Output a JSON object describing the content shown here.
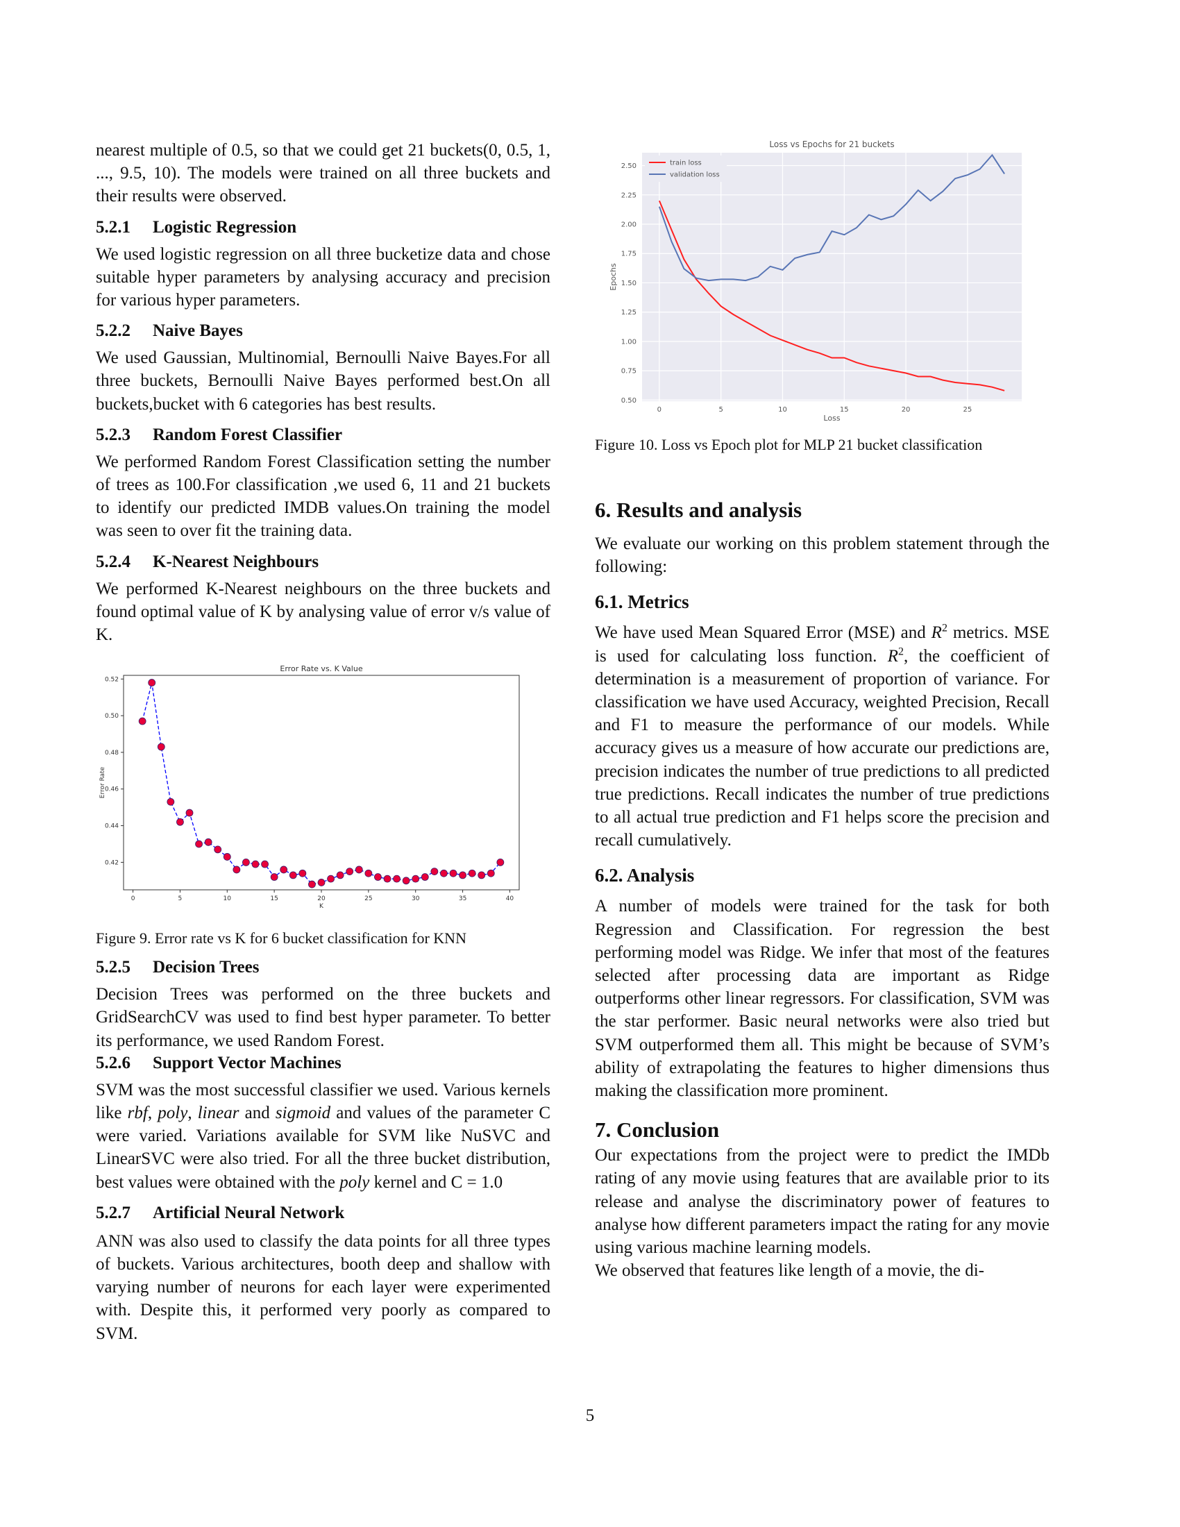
{
  "left": {
    "intro": "nearest multiple of 0.5, so that we could get 21 buckets(0, 0.5, 1, ..., 9.5, 10). The models were trained on all three buckets and their results were observed.",
    "s521_num": "5.2.1",
    "s521_title": "Logistic Regression",
    "s521_text": "We used logistic regression on all three bucketize data and chose suitable hyper parameters by analysing accuracy and precision for various hyper parameters.",
    "s522_num": "5.2.2",
    "s522_title": "Naive Bayes",
    "s522_text": "We used Gaussian, Multinomial, Bernoulli Naive Bayes.For all three buckets, Bernoulli Naive Bayes performed best.On all buckets,bucket with 6 categories has best results.",
    "s523_num": "5.2.3",
    "s523_title": "Random Forest Classifier",
    "s523_text": "We performed Random Forest Classification setting the number of trees as 100.For classification ,we used 6, 11 and 21 buckets to identify our predicted IMDB values.On training the model was seen to over fit the training data.",
    "s524_num": "5.2.4",
    "s524_title": "K-Nearest Neighbours",
    "s524_text": "We performed K-Nearest neighbours on the three buckets and found optimal value of K by analysing value of error v/s value of K.",
    "fig9_caption": "Figure 9. Error rate vs K for 6 bucket classification for KNN",
    "s525_num": "5.2.5",
    "s525_title": "Decision Trees",
    "s525_text": "Decision Trees was performed on the three buckets and GridSearchCV was used to find best hyper parameter. To better its performance, we used Random Forest.",
    "s526_num": "5.2.6",
    "s526_title": "Support Vector Machines",
    "s526_t1": "SVM was the most successful classifier we used. Various kernels like ",
    "s526_rbf": "rbf",
    "s526_c1": ", ",
    "s526_poly": "poly",
    "s526_c2": ", ",
    "s526_linear": "linear",
    "s526_and": " and ",
    "s526_sigmoid": "sigmoid",
    "s526_t2": " and values of the parameter C were varied. Variations available for SVM like NuSVC and LinearSVC were also tried. For all the three bucket distribution, best values were obtained with the ",
    "s526_poly2": "poly",
    "s526_t3": " kernel and C = 1.0",
    "s527_num": "5.2.7",
    "s527_title": "Artificial Neural Network",
    "s527_text": "ANN was also used to classify the data points for all three types of buckets. Various architectures, booth deep and shallow with varying number of neurons for each layer were experimented with. Despite this, it performed very poorly as compared to SVM."
  },
  "right": {
    "fig10_caption": "Figure 10. Loss vs Epoch plot for MLP 21 bucket classification",
    "s6_title": "6. Results and analysis",
    "s6_text": "We evaluate our working on this problem statement through the following:",
    "s61_title": "6.1. Metrics",
    "s61_t1": "We have used Mean Squared Error (MSE) and ",
    "s61_R1": "R",
    "s61_sup1": "2",
    "s61_t2": " metrics. MSE is used for calculating loss function. ",
    "s61_R2": "R",
    "s61_sup2": "2",
    "s61_t3": ", the coefficient of determination is a measurement of proportion of variance. For classification we have used Accuracy, weighted Precision, Recall and F1 to measure the performance of our models. While accuracy gives us a measure of how accurate our predictions are, precision indicates the number of true predictions to all predicted true predictions. Recall indicates the number of true predictions to all actual true prediction and F1 helps score the precision and recall cumulatively.",
    "s62_title": "6.2. Analysis",
    "s62_text": "A number of models were trained for the task for both Regression and Classification. For regression the best performing model was Ridge. We infer that most of the features selected after processing data are important as Ridge outperforms other linear regressors. For classification, SVM was the star performer. Basic neural networks were also tried but SVM outperformed them all. This might be because of SVM’s ability of extrapolating the features to higher dimensions thus making the classification more prominent.",
    "s7_title": "7. Conclusion",
    "s7_p1": "Our expectations from the project were to predict the IMDb rating of any movie using features that are available prior to its release and analyse the discriminatory power of features to analyse how different parameters impact the rating for any movie using various machine learning models.",
    "s7_p2": "We observed that features like length of a movie, the di-"
  },
  "page_number": "5",
  "chart_data": [
    {
      "type": "line",
      "title": "Error Rate vs. K Value",
      "xlabel": "K",
      "ylabel": "Error Rate",
      "xlim": [
        -1,
        41
      ],
      "ylim": [
        0.405,
        0.522
      ],
      "xticks": [
        0,
        5,
        10,
        15,
        20,
        25,
        30,
        35,
        40
      ],
      "yticks": [
        0.42,
        0.44,
        0.46,
        0.48,
        0.5,
        0.52
      ],
      "ytick_labels": [
        "0.42",
        "0.44",
        "0.46",
        "0.48",
        "0.50",
        "0.52"
      ],
      "line_color": "#0000ff",
      "marker_color": "#e8003a",
      "x": [
        1,
        2,
        3,
        4,
        5,
        6,
        7,
        8,
        9,
        10,
        11,
        12,
        13,
        14,
        15,
        16,
        17,
        18,
        19,
        20,
        21,
        22,
        23,
        24,
        25,
        26,
        27,
        28,
        29,
        30,
        31,
        32,
        33,
        34,
        35,
        36,
        37,
        38,
        39
      ],
      "values": [
        0.497,
        0.518,
        0.483,
        0.453,
        0.442,
        0.447,
        0.43,
        0.431,
        0.427,
        0.423,
        0.416,
        0.42,
        0.419,
        0.419,
        0.412,
        0.416,
        0.413,
        0.414,
        0.408,
        0.409,
        0.411,
        0.413,
        0.415,
        0.416,
        0.414,
        0.412,
        0.411,
        0.411,
        0.41,
        0.411,
        0.412,
        0.415,
        0.414,
        0.414,
        0.413,
        0.414,
        0.413,
        0.414,
        0.42
      ]
    },
    {
      "type": "line",
      "title": "Loss vs Epochs for 21 buckets",
      "xlabel": "Loss",
      "ylabel": "Epochs",
      "xlim": [
        -1.4,
        29.4
      ],
      "ylim": [
        0.49,
        2.61
      ],
      "xticks": [
        0,
        5,
        10,
        15,
        20,
        25
      ],
      "yticks": [
        0.5,
        0.75,
        1.0,
        1.25,
        1.5,
        1.75,
        2.0,
        2.25,
        2.5
      ],
      "ytick_labels": [
        "0.50",
        "0.75",
        "1.00",
        "1.25",
        "1.50",
        "1.75",
        "2.00",
        "2.25",
        "2.50"
      ],
      "legend_position": "top-left",
      "series": [
        {
          "name": "train loss",
          "color": "#ff2020",
          "x": [
            0,
            1,
            2,
            3,
            4,
            5,
            6,
            7,
            8,
            9,
            10,
            11,
            12,
            13,
            14,
            15,
            16,
            17,
            18,
            19,
            20,
            21,
            22,
            23,
            24,
            25,
            26,
            27,
            28
          ],
          "values": [
            2.2,
            1.95,
            1.7,
            1.53,
            1.41,
            1.3,
            1.23,
            1.17,
            1.11,
            1.05,
            1.01,
            0.97,
            0.93,
            0.9,
            0.86,
            0.86,
            0.82,
            0.79,
            0.77,
            0.75,
            0.73,
            0.7,
            0.7,
            0.67,
            0.65,
            0.64,
            0.63,
            0.61,
            0.58
          ]
        },
        {
          "name": "validation loss",
          "color": "#5875b5",
          "x": [
            0,
            1,
            2,
            3,
            4,
            5,
            6,
            7,
            8,
            9,
            10,
            11,
            12,
            13,
            14,
            15,
            16,
            17,
            18,
            19,
            20,
            21,
            22,
            23,
            24,
            25,
            26,
            27,
            28
          ],
          "values": [
            2.15,
            1.85,
            1.62,
            1.54,
            1.52,
            1.53,
            1.53,
            1.52,
            1.55,
            1.64,
            1.61,
            1.71,
            1.74,
            1.76,
            1.94,
            1.91,
            1.97,
            2.08,
            2.04,
            2.07,
            2.17,
            2.29,
            2.2,
            2.28,
            2.39,
            2.42,
            2.47,
            2.59,
            2.43
          ]
        }
      ]
    }
  ]
}
